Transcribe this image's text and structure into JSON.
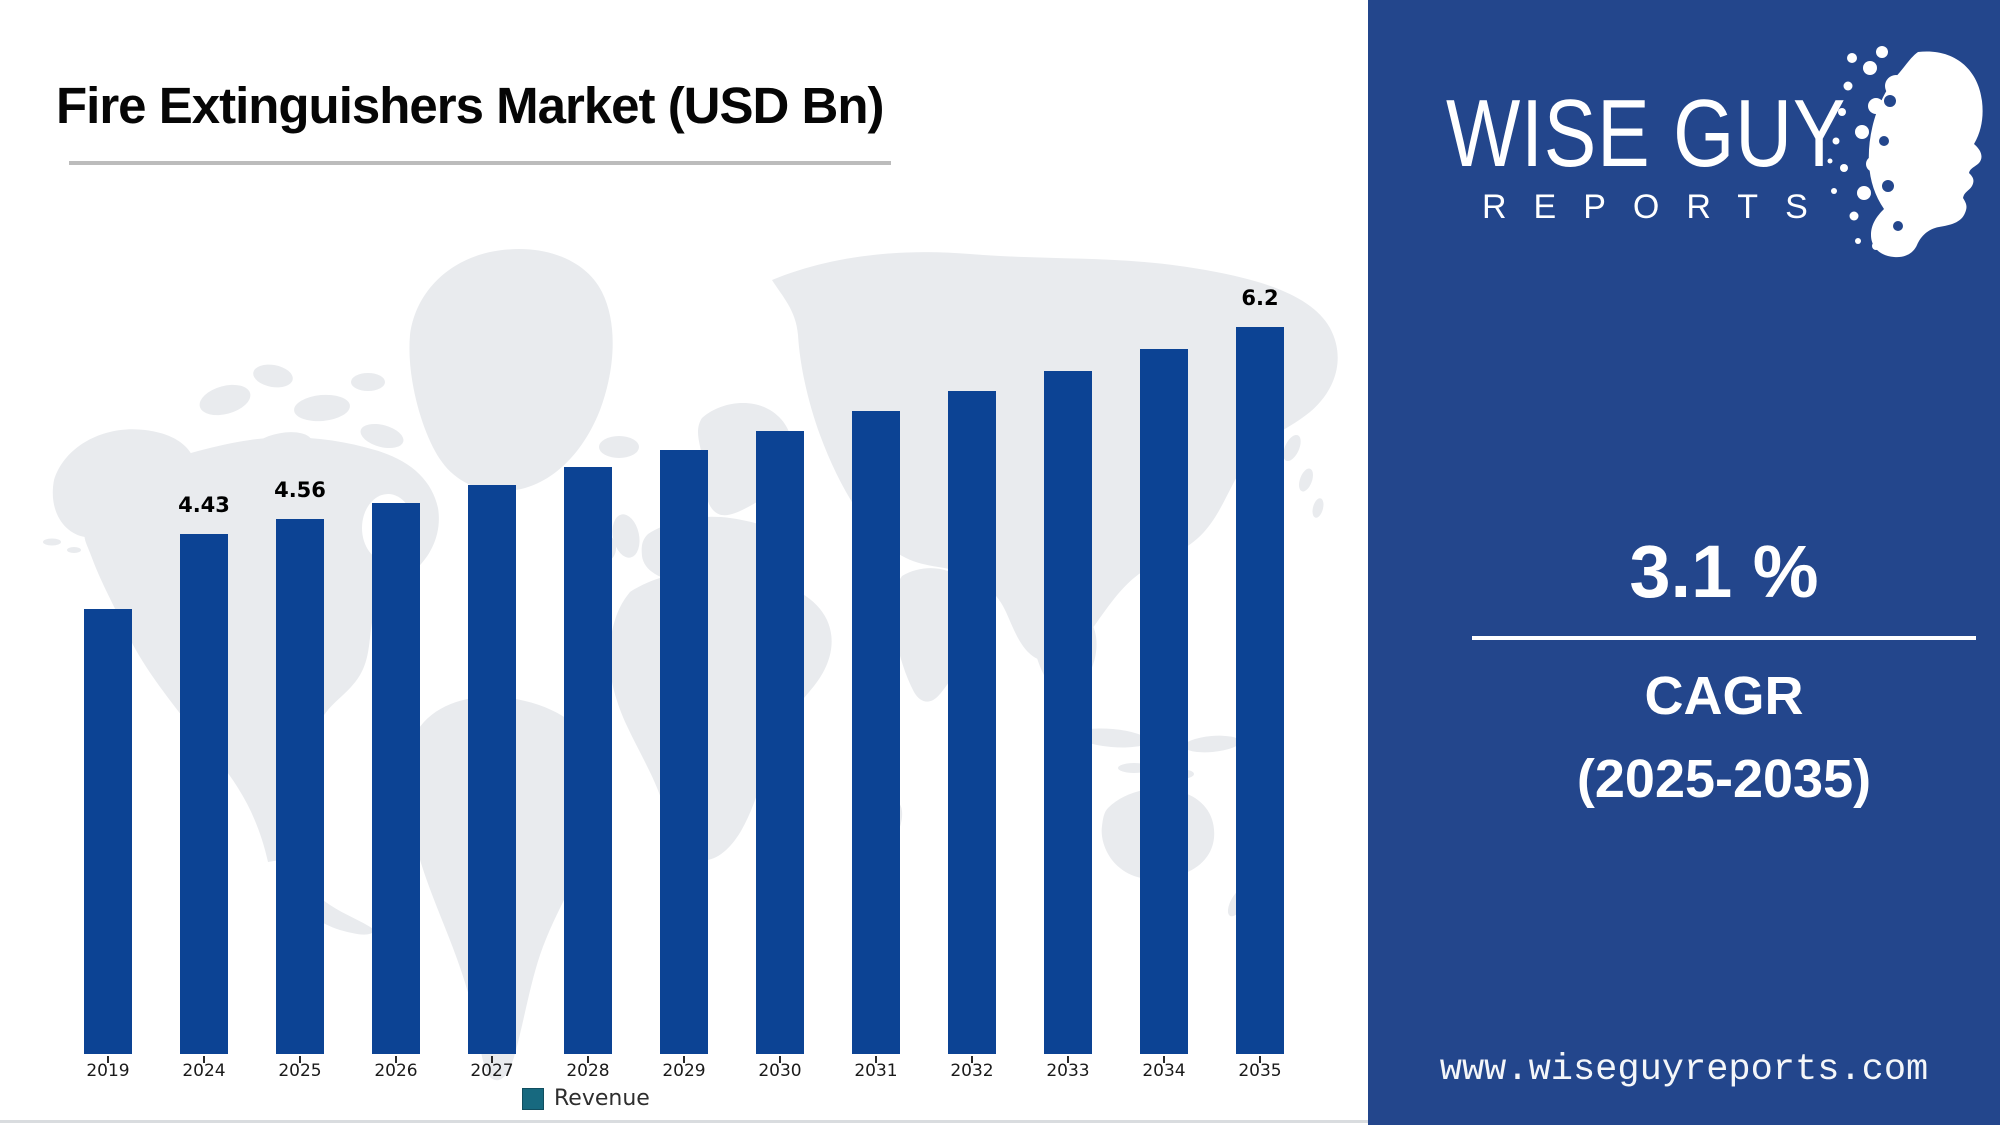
{
  "title": "Fire Extinguishers Market (USD Bn)",
  "chart_data": {
    "type": "bar",
    "title": "Fire Extinguishers Market (USD Bn)",
    "categories": [
      "2019",
      "2024",
      "2025",
      "2026",
      "2027",
      "2028",
      "2029",
      "2030",
      "2031",
      "2032",
      "2033",
      "2034",
      "2035"
    ],
    "series": [
      {
        "name": "Revenue",
        "values": [
          3.79,
          4.43,
          4.56,
          4.7,
          4.85,
          5.0,
          5.15,
          5.31,
          5.48,
          5.65,
          5.82,
          6.01,
          6.2
        ]
      }
    ],
    "data_labels": {
      "2024": "4.43",
      "2025": "4.56",
      "2035": "6.2"
    },
    "ylim": [
      0,
      6.6
    ],
    "grid": false,
    "legend_position": "bottom",
    "bar_color": "#0c4394",
    "legend_swatch_color": "#17697f",
    "map_background_color": "#e9ebee"
  },
  "legend": {
    "label": "Revenue"
  },
  "panel": {
    "background": "#23468c",
    "logo_line1": "WISE GUY",
    "logo_line2": "REPORTS",
    "cagr_value": "3.1 %",
    "cagr_label": "CAGR",
    "cagr_period": "(2025-2035)",
    "website": "www.wiseguyreports.com"
  }
}
